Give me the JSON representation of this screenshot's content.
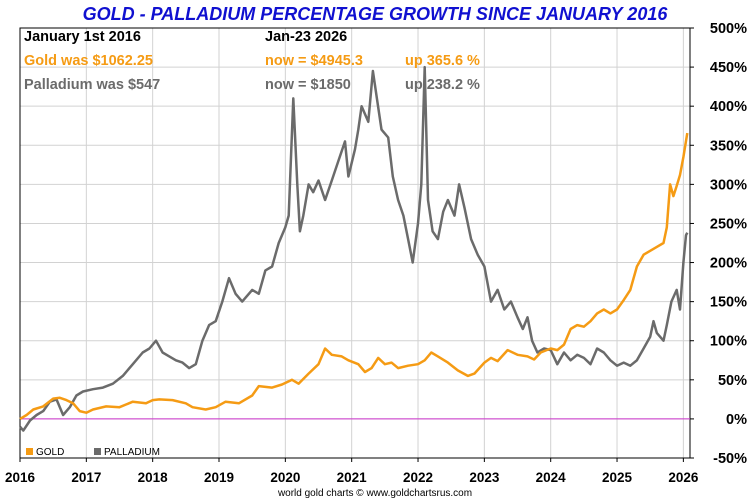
{
  "header": {
    "title": "GOLD - PALLADIUM PERCENTAGE GROWTH SINCE JANUARY 2016",
    "start_date": "January 1st 2016",
    "end_date": "Jan-23  2026",
    "gold_was": "Gold was $1062.25",
    "gold_now": "now = $4945.3",
    "gold_up": "up 365.6 %",
    "palladium_was": "Palladium was $547",
    "palladium_now": "now = $1850",
    "palladium_up": "up 238.2 %"
  },
  "footer": {
    "credit": "world gold charts © www.goldchartsrus.com"
  },
  "colors": {
    "gold": "#f59b14",
    "palladium": "#6b6b6b",
    "title": "#1010d0",
    "zero_line": "#cc33cc",
    "grid": "#d2d2d2"
  },
  "chart_data": {
    "type": "line",
    "title": "GOLD - PALLADIUM PERCENTAGE GROWTH SINCE JANUARY 2016",
    "xlabel": "",
    "ylabel": "",
    "xlim": [
      2016.0,
      2026.1
    ],
    "ylim": [
      -50,
      500
    ],
    "x_ticks": [
      2016,
      2017,
      2018,
      2019,
      2020,
      2021,
      2022,
      2023,
      2024,
      2025,
      2026
    ],
    "x_tick_labels": [
      "2016",
      "2017",
      "2018",
      "2019",
      "2020",
      "2021",
      "2022",
      "2023",
      "2024",
      "2025",
      "2026"
    ],
    "y_ticks": [
      -50,
      0,
      50,
      100,
      150,
      200,
      250,
      300,
      350,
      400,
      450,
      500
    ],
    "y_tick_labels": [
      "-50%",
      "0%",
      "50%",
      "100%",
      "150%",
      "200%",
      "250%",
      "300%",
      "350%",
      "400%",
      "450%",
      "500%"
    ],
    "grid": true,
    "legend_position": "bottom-left",
    "reference_line": 0,
    "series": [
      {
        "name": "GOLD",
        "points": [
          [
            2016.0,
            0
          ],
          [
            2016.1,
            5
          ],
          [
            2016.2,
            12
          ],
          [
            2016.35,
            16
          ],
          [
            2016.5,
            26
          ],
          [
            2016.6,
            27
          ],
          [
            2016.7,
            24
          ],
          [
            2016.8,
            20
          ],
          [
            2016.9,
            10
          ],
          [
            2017.0,
            8
          ],
          [
            2017.1,
            12
          ],
          [
            2017.3,
            16
          ],
          [
            2017.5,
            15
          ],
          [
            2017.7,
            22
          ],
          [
            2017.9,
            20
          ],
          [
            2018.0,
            24
          ],
          [
            2018.1,
            25
          ],
          [
            2018.3,
            24
          ],
          [
            2018.5,
            20
          ],
          [
            2018.6,
            15
          ],
          [
            2018.8,
            12
          ],
          [
            2018.95,
            15
          ],
          [
            2019.1,
            22
          ],
          [
            2019.3,
            20
          ],
          [
            2019.5,
            30
          ],
          [
            2019.6,
            42
          ],
          [
            2019.8,
            40
          ],
          [
            2019.95,
            44
          ],
          [
            2020.1,
            50
          ],
          [
            2020.2,
            45
          ],
          [
            2020.35,
            58
          ],
          [
            2020.5,
            70
          ],
          [
            2020.6,
            90
          ],
          [
            2020.7,
            82
          ],
          [
            2020.85,
            80
          ],
          [
            2020.95,
            75
          ],
          [
            2021.1,
            70
          ],
          [
            2021.2,
            60
          ],
          [
            2021.3,
            65
          ],
          [
            2021.4,
            78
          ],
          [
            2021.5,
            70
          ],
          [
            2021.6,
            72
          ],
          [
            2021.7,
            65
          ],
          [
            2021.85,
            68
          ],
          [
            2022.0,
            70
          ],
          [
            2022.1,
            75
          ],
          [
            2022.2,
            85
          ],
          [
            2022.3,
            80
          ],
          [
            2022.45,
            72
          ],
          [
            2022.6,
            62
          ],
          [
            2022.75,
            55
          ],
          [
            2022.85,
            58
          ],
          [
            2023.0,
            72
          ],
          [
            2023.1,
            78
          ],
          [
            2023.2,
            74
          ],
          [
            2023.35,
            88
          ],
          [
            2023.5,
            82
          ],
          [
            2023.65,
            80
          ],
          [
            2023.75,
            76
          ],
          [
            2023.85,
            85
          ],
          [
            2024.0,
            90
          ],
          [
            2024.1,
            88
          ],
          [
            2024.2,
            95
          ],
          [
            2024.3,
            115
          ],
          [
            2024.4,
            120
          ],
          [
            2024.5,
            118
          ],
          [
            2024.6,
            125
          ],
          [
            2024.7,
            135
          ],
          [
            2024.8,
            140
          ],
          [
            2024.9,
            135
          ],
          [
            2025.0,
            140
          ],
          [
            2025.1,
            152
          ],
          [
            2025.2,
            165
          ],
          [
            2025.3,
            195
          ],
          [
            2025.4,
            210
          ],
          [
            2025.5,
            215
          ],
          [
            2025.6,
            220
          ],
          [
            2025.7,
            225
          ],
          [
            2025.75,
            245
          ],
          [
            2025.8,
            300
          ],
          [
            2025.85,
            285
          ],
          [
            2025.9,
            298
          ],
          [
            2025.95,
            312
          ],
          [
            2026.0,
            335
          ],
          [
            2026.06,
            365.6
          ]
        ]
      },
      {
        "name": "PALLADIUM",
        "points": [
          [
            2016.0,
            -10
          ],
          [
            2016.05,
            -15
          ],
          [
            2016.15,
            -2
          ],
          [
            2016.25,
            5
          ],
          [
            2016.35,
            10
          ],
          [
            2016.45,
            22
          ],
          [
            2016.55,
            25
          ],
          [
            2016.65,
            5
          ],
          [
            2016.75,
            15
          ],
          [
            2016.85,
            30
          ],
          [
            2016.95,
            35
          ],
          [
            2017.1,
            38
          ],
          [
            2017.25,
            40
          ],
          [
            2017.4,
            45
          ],
          [
            2017.55,
            55
          ],
          [
            2017.7,
            70
          ],
          [
            2017.85,
            85
          ],
          [
            2017.95,
            90
          ],
          [
            2018.05,
            100
          ],
          [
            2018.15,
            85
          ],
          [
            2018.25,
            80
          ],
          [
            2018.35,
            75
          ],
          [
            2018.45,
            72
          ],
          [
            2018.55,
            65
          ],
          [
            2018.65,
            70
          ],
          [
            2018.75,
            100
          ],
          [
            2018.85,
            120
          ],
          [
            2018.95,
            125
          ],
          [
            2019.05,
            150
          ],
          [
            2019.15,
            180
          ],
          [
            2019.25,
            160
          ],
          [
            2019.35,
            150
          ],
          [
            2019.5,
            165
          ],
          [
            2019.6,
            160
          ],
          [
            2019.7,
            190
          ],
          [
            2019.8,
            195
          ],
          [
            2019.9,
            225
          ],
          [
            2020.0,
            245
          ],
          [
            2020.05,
            260
          ],
          [
            2020.12,
            410
          ],
          [
            2020.18,
            300
          ],
          [
            2020.22,
            240
          ],
          [
            2020.27,
            260
          ],
          [
            2020.35,
            300
          ],
          [
            2020.42,
            290
          ],
          [
            2020.5,
            305
          ],
          [
            2020.6,
            280
          ],
          [
            2020.7,
            305
          ],
          [
            2020.8,
            330
          ],
          [
            2020.9,
            355
          ],
          [
            2020.95,
            310
          ],
          [
            2021.05,
            345
          ],
          [
            2021.1,
            370
          ],
          [
            2021.15,
            400
          ],
          [
            2021.25,
            380
          ],
          [
            2021.32,
            445
          ],
          [
            2021.38,
            410
          ],
          [
            2021.45,
            370
          ],
          [
            2021.55,
            360
          ],
          [
            2021.62,
            310
          ],
          [
            2021.7,
            280
          ],
          [
            2021.78,
            260
          ],
          [
            2021.85,
            230
          ],
          [
            2021.92,
            200
          ],
          [
            2022.0,
            250
          ],
          [
            2022.05,
            300
          ],
          [
            2022.1,
            450
          ],
          [
            2022.15,
            280
          ],
          [
            2022.22,
            240
          ],
          [
            2022.3,
            230
          ],
          [
            2022.38,
            265
          ],
          [
            2022.45,
            280
          ],
          [
            2022.55,
            260
          ],
          [
            2022.62,
            300
          ],
          [
            2022.7,
            270
          ],
          [
            2022.8,
            230
          ],
          [
            2022.9,
            210
          ],
          [
            2023.0,
            195
          ],
          [
            2023.1,
            150
          ],
          [
            2023.2,
            165
          ],
          [
            2023.3,
            140
          ],
          [
            2023.4,
            150
          ],
          [
            2023.5,
            130
          ],
          [
            2023.58,
            115
          ],
          [
            2023.65,
            130
          ],
          [
            2023.72,
            100
          ],
          [
            2023.8,
            85
          ],
          [
            2023.9,
            90
          ],
          [
            2024.0,
            88
          ],
          [
            2024.1,
            70
          ],
          [
            2024.2,
            85
          ],
          [
            2024.3,
            75
          ],
          [
            2024.4,
            82
          ],
          [
            2024.5,
            78
          ],
          [
            2024.6,
            70
          ],
          [
            2024.7,
            90
          ],
          [
            2024.8,
            85
          ],
          [
            2024.9,
            75
          ],
          [
            2025.0,
            68
          ],
          [
            2025.1,
            72
          ],
          [
            2025.2,
            68
          ],
          [
            2025.3,
            75
          ],
          [
            2025.4,
            90
          ],
          [
            2025.5,
            105
          ],
          [
            2025.55,
            125
          ],
          [
            2025.6,
            110
          ],
          [
            2025.7,
            100
          ],
          [
            2025.75,
            120
          ],
          [
            2025.82,
            150
          ],
          [
            2025.9,
            165
          ],
          [
            2025.95,
            140
          ],
          [
            2026.0,
            200
          ],
          [
            2026.04,
            235
          ],
          [
            2026.06,
            238.2
          ]
        ]
      }
    ]
  }
}
